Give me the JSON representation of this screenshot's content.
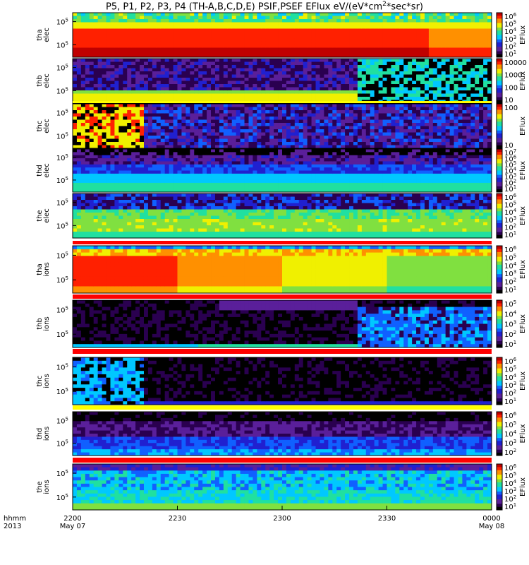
{
  "title": {
    "main": "P5, P1, P2, P3, P4 (TH-A,B,C,D,E) PSIF,PSEF EFlux eV/(eV*cm",
    "sup": "2",
    "end": "*sec*sr)"
  },
  "x_axis": {
    "corner_labels": [
      "hhmm",
      "2013"
    ],
    "ticks": [
      {
        "time": "2200",
        "date": "May 07"
      },
      {
        "time": "2230",
        "date": ""
      },
      {
        "time": "2300",
        "date": ""
      },
      {
        "time": "2330",
        "date": ""
      },
      {
        "time": "0000",
        "date": "May 08"
      }
    ]
  },
  "colorbar_unit": "EFlux",
  "chart_data": {
    "type": "heatmap",
    "x_range": [
      "2013-05-07 22:00",
      "2013-05-08 00:00"
    ],
    "panels": [
      {
        "probe": "tha",
        "species": "elec",
        "y_ticks": [
          "10^5",
          "10^5"
        ],
        "cbar_ticks": [
          "10^6",
          "10^5",
          "10^4",
          "10^3",
          "10^2",
          "10^1"
        ],
        "sep": "none"
      },
      {
        "probe": "thb",
        "species": "elec",
        "y_ticks": [
          "10^5",
          "10^5"
        ],
        "cbar_ticks": [
          "10000",
          "1000",
          "100",
          "10"
        ],
        "sep": "yellow"
      },
      {
        "probe": "thc",
        "species": "elec",
        "y_ticks": [
          "10^5",
          "10^5"
        ],
        "cbar_ticks": [
          "100",
          "10"
        ],
        "sep": "none"
      },
      {
        "probe": "thd",
        "species": "elec",
        "y_ticks": [
          "10^5",
          "10^5"
        ],
        "cbar_ticks": [
          "10^7",
          "10^6",
          "10^5",
          "10^4",
          "10^3",
          "10^2",
          "10^1"
        ],
        "sep": "none"
      },
      {
        "probe": "the",
        "species": "elec",
        "y_ticks": [
          "10^5",
          "10^5"
        ],
        "cbar_ticks": [
          "10^6",
          "10^5",
          "10^4",
          "10^3",
          "10^2",
          "10^1"
        ],
        "sep": "red"
      },
      {
        "probe": "tha",
        "species": "ions",
        "y_ticks": [
          "10^5",
          "10^5"
        ],
        "cbar_ticks": [
          "10^6",
          "10^5",
          "10^4",
          "10^3",
          "10^2",
          "10^1"
        ],
        "sep": "red"
      },
      {
        "probe": "thb",
        "species": "ions",
        "y_ticks": [
          "10^5",
          "10^5"
        ],
        "cbar_ticks": [
          "10^5",
          "10^4",
          "10^3",
          "10^2",
          "10^1"
        ],
        "sep": "red"
      },
      {
        "probe": "thc",
        "species": "ions",
        "y_ticks": [
          "10^5",
          "10^5"
        ],
        "cbar_ticks": [
          "10^6",
          "10^5",
          "10^4",
          "10^3",
          "10^2",
          "10^1"
        ],
        "sep": "yellow"
      },
      {
        "probe": "thd",
        "species": "ions",
        "y_ticks": [
          "10^5",
          "10^5"
        ],
        "cbar_ticks": [
          "10^6",
          "10^5",
          "10^4",
          "10^3",
          "10^2"
        ],
        "sep": "red"
      },
      {
        "probe": "the",
        "species": "ions",
        "y_ticks": [
          "10^5",
          "10^5"
        ],
        "cbar_ticks": [
          "10^6",
          "10^5",
          "10^4",
          "10^3",
          "10^2",
          "10^1"
        ],
        "sep": "none"
      }
    ]
  },
  "colors": {
    "colormap": [
      "#000000",
      "#2a0050",
      "#5a1f9a",
      "#2020d0",
      "#1060ff",
      "#00c8ff",
      "#20e0a0",
      "#80e040",
      "#f0f000",
      "#ff9000",
      "#ff2000",
      "#c00000"
    ],
    "sep_red": "#ff0000",
    "sep_yellow": "#ffff00"
  }
}
